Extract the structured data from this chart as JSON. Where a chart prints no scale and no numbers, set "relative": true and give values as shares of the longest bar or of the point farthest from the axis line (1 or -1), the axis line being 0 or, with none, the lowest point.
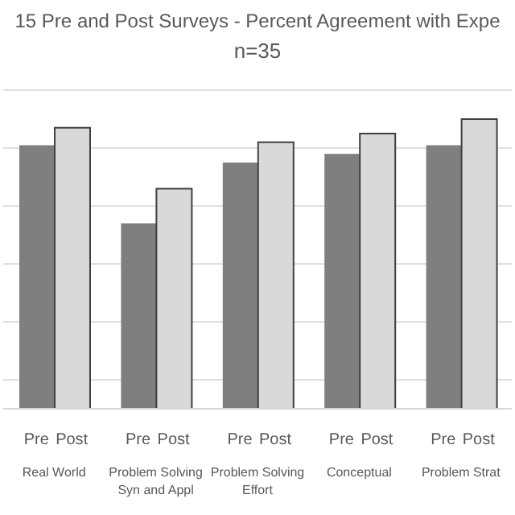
{
  "chart_data": {
    "type": "bar",
    "title": "15 Pre and Post Surveys - Percent Agreement with Expe",
    "subtitle": "n=35",
    "relative": true,
    "grid": "y",
    "legend": false,
    "categories": [
      "Real World",
      "Problem Solving Syn and Appl",
      "Problem Solving Effort",
      "Conceptual",
      "Problem Strat"
    ],
    "series": [
      {
        "name": "Pre",
        "color": "#7f7f7f",
        "values": [
          0.91,
          0.64,
          0.85,
          0.88,
          0.91
        ]
      },
      {
        "name": "Post",
        "color": "#d9d9d9",
        "values": [
          0.97,
          0.76,
          0.92,
          0.95,
          1
        ]
      }
    ]
  }
}
